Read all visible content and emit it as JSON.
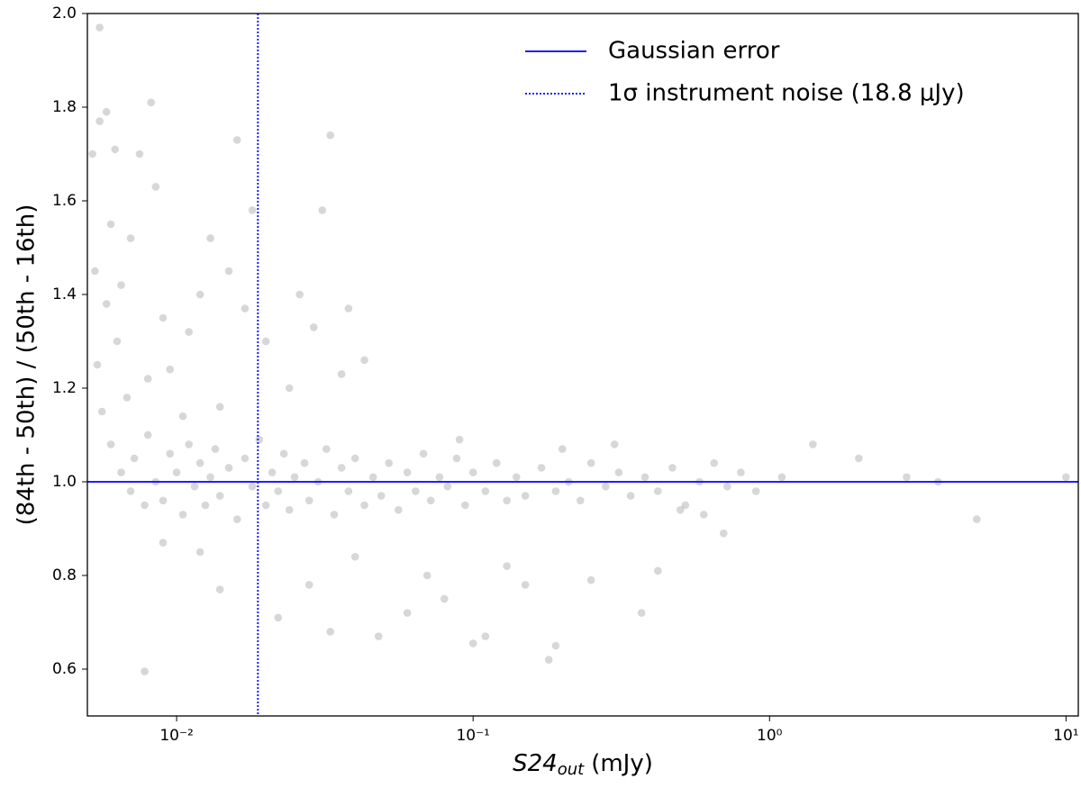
{
  "chart_data": {
    "type": "scatter",
    "x_label": {
      "main": "S24",
      "sub": "out",
      "unit": "(mJy)"
    },
    "y_label": "(84th - 50th) / (50th - 16th)",
    "xscale": "log",
    "xlim": [
      0.005,
      11
    ],
    "ylim": [
      0.5,
      2.0
    ],
    "xticks": [
      {
        "value": 0.01,
        "label": "10⁻²"
      },
      {
        "value": 0.1,
        "label": "10⁻¹"
      },
      {
        "value": 1,
        "label": "10⁰"
      },
      {
        "value": 10,
        "label": "10¹"
      }
    ],
    "yticks": [
      0.6,
      0.8,
      {
        "value": 1,
        "label": "1.0"
      },
      1.2,
      1.4,
      1.6,
      1.8,
      {
        "value": 2,
        "label": "2.0"
      }
    ],
    "legend": "upper right",
    "hlines": [
      {
        "name": "Gaussian error",
        "y": 1,
        "color": "#1f1fff",
        "style": "solid"
      }
    ],
    "vlines": [
      {
        "name": "1σ instrument noise (18.8 μJy)",
        "x": 0.0188,
        "color": "#1f1fff",
        "style": "dotted"
      }
    ],
    "series": [
      {
        "color": "#8c8c8c",
        "x": [
          0.0055,
          0.0052,
          0.0055,
          0.0058,
          0.0062,
          0.0075,
          0.0082,
          0.0085,
          0.016,
          0.033,
          0.031,
          0.018,
          0.0078,
          0.19,
          0.18,
          0.1,
          0.37,
          5.0,
          10.0,
          2.9,
          3.7,
          2.0,
          1.4,
          0.0053,
          0.006,
          0.0065,
          0.007,
          0.0063,
          0.0058,
          0.0054,
          0.009,
          0.011,
          0.012,
          0.013,
          0.015,
          0.017,
          0.02,
          0.026,
          0.029,
          0.038,
          0.043,
          0.036,
          0.024,
          0.0095,
          0.0068,
          0.0056,
          0.008,
          0.014,
          0.0105,
          0.009,
          0.012,
          0.014,
          0.022,
          0.028,
          0.033,
          0.048,
          0.06,
          0.08,
          0.11,
          0.13,
          0.15,
          0.25,
          0.42,
          0.07,
          0.04,
          0.006,
          0.0065,
          0.007,
          0.0072,
          0.0078,
          0.008,
          0.0085,
          0.009,
          0.0095,
          0.01,
          0.0105,
          0.011,
          0.0115,
          0.012,
          0.0125,
          0.013,
          0.0135,
          0.014,
          0.015,
          0.016,
          0.017,
          0.018,
          0.019,
          0.02,
          0.021,
          0.022,
          0.023,
          0.024,
          0.025,
          0.027,
          0.028,
          0.03,
          0.032,
          0.034,
          0.036,
          0.038,
          0.04,
          0.043,
          0.046,
          0.049,
          0.052,
          0.056,
          0.06,
          0.064,
          0.068,
          0.072,
          0.077,
          0.082,
          0.088,
          0.094,
          0.1,
          0.11,
          0.12,
          0.13,
          0.14,
          0.15,
          0.17,
          0.19,
          0.21,
          0.23,
          0.25,
          0.28,
          0.31,
          0.34,
          0.38,
          0.42,
          0.47,
          0.52,
          0.58,
          0.65,
          0.72,
          0.8,
          0.9,
          1.1,
          0.6,
          0.7,
          0.5,
          0.3,
          0.2,
          0.09
        ],
        "values": [
          1.97,
          1.7,
          1.77,
          1.79,
          1.71,
          1.7,
          1.81,
          1.63,
          1.73,
          1.74,
          1.58,
          1.58,
          0.595,
          0.65,
          0.62,
          0.655,
          0.72,
          0.92,
          1.01,
          1.01,
          1.0,
          1.05,
          1.08,
          1.45,
          1.55,
          1.42,
          1.52,
          1.3,
          1.38,
          1.25,
          1.35,
          1.32,
          1.4,
          1.52,
          1.45,
          1.37,
          1.3,
          1.4,
          1.33,
          1.37,
          1.26,
          1.23,
          1.2,
          1.24,
          1.18,
          1.15,
          1.22,
          1.16,
          1.14,
          0.87,
          0.85,
          0.77,
          0.71,
          0.78,
          0.68,
          0.67,
          0.72,
          0.75,
          0.67,
          0.82,
          0.78,
          0.79,
          0.81,
          0.8,
          0.84,
          1.08,
          1.02,
          0.98,
          1.05,
          0.95,
          1.1,
          1.0,
          0.96,
          1.06,
          1.02,
          0.93,
          1.08,
          0.99,
          1.04,
          0.95,
          1.01,
          1.07,
          0.97,
          1.03,
          0.92,
          1.05,
          0.99,
          1.09,
          0.95,
          1.02,
          0.98,
          1.06,
          0.94,
          1.01,
          1.04,
          0.96,
          1.0,
          1.07,
          0.93,
          1.03,
          0.98,
          1.05,
          0.95,
          1.01,
          0.97,
          1.04,
          0.94,
          1.02,
          0.98,
          1.06,
          0.96,
          1.01,
          0.99,
          1.05,
          0.95,
          1.02,
          0.98,
          1.04,
          0.96,
          1.01,
          0.97,
          1.03,
          0.98,
          1.0,
          0.96,
          1.04,
          0.99,
          1.02,
          0.97,
          1.01,
          0.98,
          1.03,
          0.95,
          1.0,
          1.04,
          0.99,
          1.02,
          0.98,
          1.01,
          0.93,
          0.89,
          0.94,
          1.08,
          1.07,
          1.09
        ]
      }
    ]
  }
}
